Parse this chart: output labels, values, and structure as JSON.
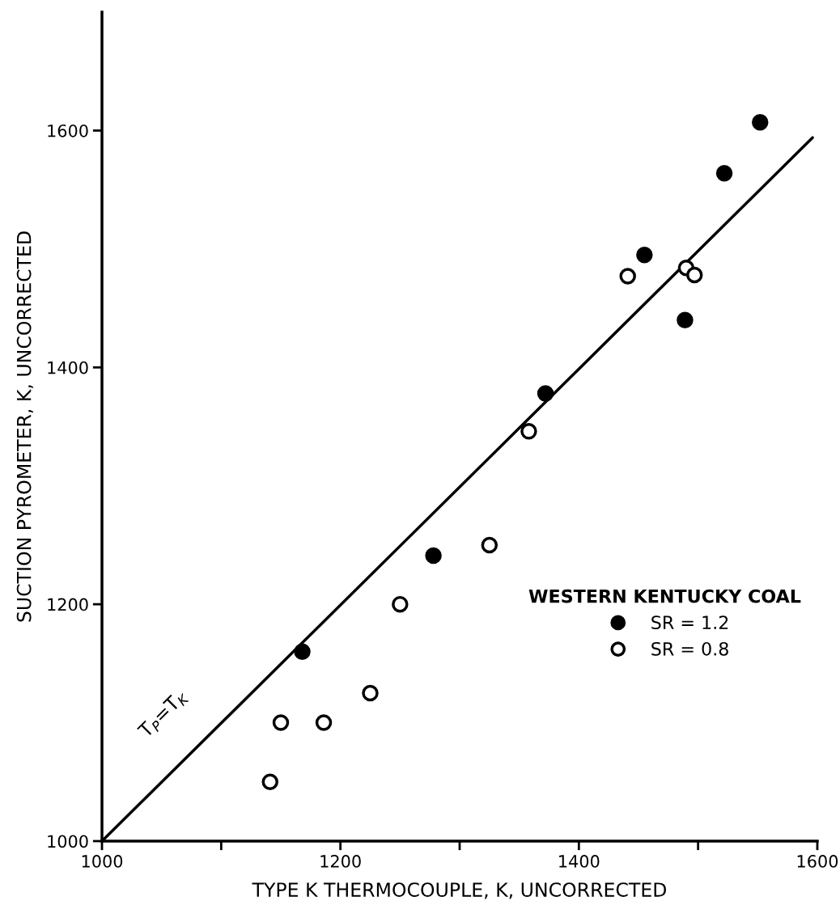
{
  "chart_data": {
    "type": "scatter",
    "xlabel": "TYPE K THERMOCOUPLE, K, UNCORRECTED",
    "ylabel": "SUCTION PYROMETER, K, UNCORRECTED",
    "legend_title": "WESTERN KENTUCKY COAL",
    "legend": "bottom right",
    "grid": false,
    "xlim": [
      1000,
      1600
    ],
    "ylim": [
      1000,
      1700
    ],
    "xticks": [
      1000,
      {
        "value": 1100,
        "label": null
      },
      1200,
      {
        "value": 1300,
        "label": null
      },
      1400,
      {
        "value": 1500,
        "label": null
      },
      1600
    ],
    "yticks": [
      1000,
      1200,
      1400,
      1600
    ],
    "annotations": [
      "T$_{P}$=T$_{K}$"
    ],
    "series": [
      {
        "name": "SR = 1.2",
        "color": "#000000",
        "marker": "circle",
        "x": [
          1168,
          1278,
          1372,
          1455,
          1489,
          1522,
          1552
        ],
        "values": [
          1160,
          1241,
          1378,
          1495,
          1440,
          1564,
          1607
        ]
      },
      {
        "name": "SR = 0.8",
        "color": "#ffffff",
        "marker": "circle",
        "x": [
          1141,
          1150,
          1186,
          1225,
          1250,
          1325,
          1358,
          1441,
          1490,
          1497
        ],
        "values": [
          1050,
          1100,
          1100,
          1125,
          1200,
          1250,
          1346,
          1477,
          1484,
          1478
        ]
      },
      {
        "type": "line",
        "color": "#000000",
        "marker": "none",
        "x": [
          1000,
          1596
        ],
        "values": [
          1000,
          1594
        ]
      }
    ]
  }
}
